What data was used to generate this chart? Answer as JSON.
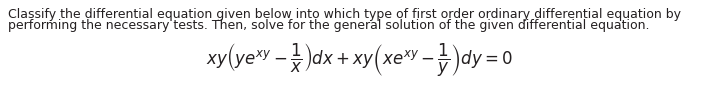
{
  "text_line1": "Classify the differential equation given below into which type of first order ordinary differential equation by",
  "text_line2": "performing the necessary tests. Then, solve for the general solution of the given differential equation.",
  "bg_color": "#ffffff",
  "text_color": "#231f20",
  "text_fontsize": 9.0,
  "eq_fontsize": 12.0,
  "fig_width": 7.2,
  "fig_height": 0.9
}
